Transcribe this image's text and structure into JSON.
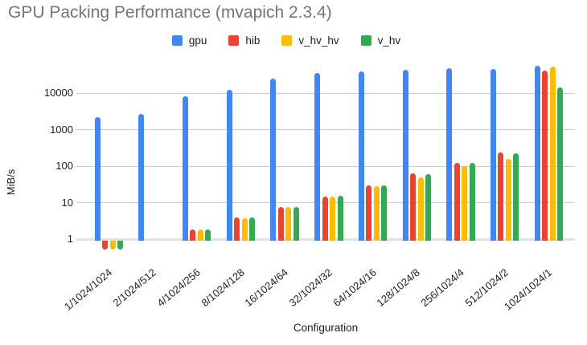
{
  "chart_data": {
    "type": "bar",
    "title": "GPU Packing Performance (mvapich 2.3.4)",
    "xlabel": "Configuration",
    "ylabel": "MiB/s",
    "y_scale": "log",
    "y_ticks": [
      1,
      10,
      100,
      1000,
      10000
    ],
    "ylim": [
      0.5,
      68000
    ],
    "grid": true,
    "legend_position": "top",
    "categories": [
      "1/1024/1024",
      "2/1024/512",
      "4/1024/256",
      "8/1024/128",
      "16/1024/64",
      "32/1024/32",
      "64/1024/16",
      "128/1024/8",
      "256/1024/4",
      "512/1024/2",
      "1024/1024/1"
    ],
    "series": [
      {
        "name": "gpu",
        "color": "#4285F4",
        "values": [
          2200,
          2700,
          8000,
          12500,
          24500,
          35500,
          38500,
          44000,
          48000,
          45500,
          55000
        ]
      },
      {
        "name": "hib",
        "color": "#EA4335",
        "values": [
          0.5,
          null,
          1.8,
          3.9,
          7.4,
          14.5,
          29,
          62,
          120,
          235,
          42000
        ]
      },
      {
        "name": "v_hv_hv",
        "color": "#FBBC04",
        "values": [
          0.5,
          null,
          1.8,
          3.8,
          7.5,
          14.5,
          28,
          49,
          100,
          160,
          52000
        ]
      },
      {
        "name": "v_hv",
        "color": "#34A853",
        "values": [
          0.5,
          null,
          1.8,
          3.9,
          7.6,
          15,
          30,
          60,
          120,
          220,
          14000
        ]
      }
    ]
  }
}
